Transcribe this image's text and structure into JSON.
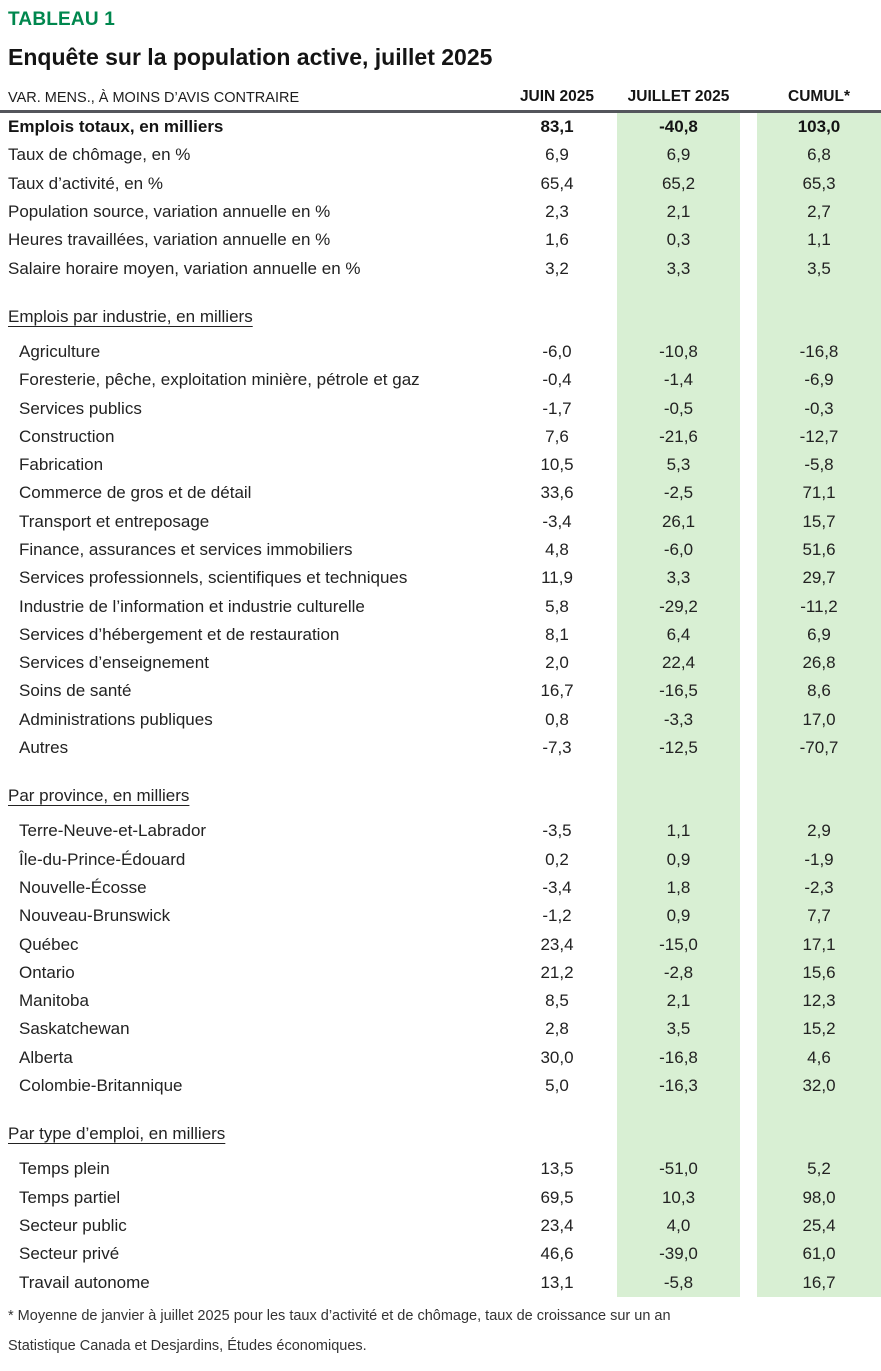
{
  "header": {
    "table_label": "TABLEAU 1",
    "title": "Enquête sur la population active, juillet 2025",
    "columns": {
      "label": "VAR. MENS., À MOINS D’AVIS CONTRAIRE",
      "juin": "JUIN 2025",
      "juillet": "JUILLET 2025",
      "cumul": "CUMUL*"
    }
  },
  "colors": {
    "accent_green": "#00874E",
    "band_green": "#D8EFD3",
    "rule_gray": "#54565C"
  },
  "table": {
    "sections": [
      {
        "heading": null,
        "rows": [
          {
            "label": "Emplois totaux, en milliers",
            "juin": "83,1",
            "juillet": "-40,8",
            "cumul": "103,0",
            "bold": true
          },
          {
            "label": "Taux de chômage, en %",
            "juin": "6,9",
            "juillet": "6,9",
            "cumul": "6,8"
          },
          {
            "label": "Taux d’activité, en %",
            "juin": "65,4",
            "juillet": "65,2",
            "cumul": "65,3"
          },
          {
            "label": "Population source, variation annuelle en %",
            "juin": "2,3",
            "juillet": "2,1",
            "cumul": "2,7"
          },
          {
            "label": "Heures travaillées, variation annuelle en %",
            "juin": "1,6",
            "juillet": "0,3",
            "cumul": "1,1"
          },
          {
            "label": "Salaire horaire moyen, variation annuelle en %",
            "juin": "3,2",
            "juillet": "3,3",
            "cumul": "3,5"
          }
        ]
      },
      {
        "heading": "Emplois par industrie, en milliers",
        "rows": [
          {
            "label": "Agriculture",
            "juin": "-6,0",
            "juillet": "-10,8",
            "cumul": "-16,8"
          },
          {
            "label": "Foresterie, pêche, exploitation minière, pétrole et gaz",
            "juin": "-0,4",
            "juillet": "-1,4",
            "cumul": "-6,9"
          },
          {
            "label": "Services publics",
            "juin": "-1,7",
            "juillet": "-0,5",
            "cumul": "-0,3"
          },
          {
            "label": "Construction",
            "juin": "7,6",
            "juillet": "-21,6",
            "cumul": "-12,7"
          },
          {
            "label": "Fabrication",
            "juin": "10,5",
            "juillet": "5,3",
            "cumul": "-5,8"
          },
          {
            "label": "Commerce de gros et de détail",
            "juin": "33,6",
            "juillet": "-2,5",
            "cumul": "71,1"
          },
          {
            "label": "Transport et entreposage",
            "juin": "-3,4",
            "juillet": "26,1",
            "cumul": "15,7"
          },
          {
            "label": "Finance, assurances et services immobiliers",
            "juin": "4,8",
            "juillet": "-6,0",
            "cumul": "51,6"
          },
          {
            "label": "Services professionnels, scientifiques et techniques",
            "juin": "11,9",
            "juillet": "3,3",
            "cumul": "29,7"
          },
          {
            "label": "Industrie de l’information et industrie culturelle",
            "juin": "5,8",
            "juillet": "-29,2",
            "cumul": "-11,2"
          },
          {
            "label": "Services d’hébergement et de restauration",
            "juin": "8,1",
            "juillet": "6,4",
            "cumul": "6,9"
          },
          {
            "label": "Services d’enseignement",
            "juin": "2,0",
            "juillet": "22,4",
            "cumul": "26,8"
          },
          {
            "label": "Soins de santé",
            "juin": "16,7",
            "juillet": "-16,5",
            "cumul": "8,6"
          },
          {
            "label": "Administrations publiques",
            "juin": "0,8",
            "juillet": "-3,3",
            "cumul": "17,0"
          },
          {
            "label": "Autres",
            "juin": "-7,3",
            "juillet": "-12,5",
            "cumul": "-70,7"
          }
        ]
      },
      {
        "heading": "Par province, en milliers",
        "rows": [
          {
            "label": "Terre-Neuve-et-Labrador",
            "juin": "-3,5",
            "juillet": "1,1",
            "cumul": "2,9"
          },
          {
            "label": "Île-du-Prince-Édouard",
            "juin": "0,2",
            "juillet": "0,9",
            "cumul": "-1,9"
          },
          {
            "label": "Nouvelle-Écosse",
            "juin": "-3,4",
            "juillet": "1,8",
            "cumul": "-2,3"
          },
          {
            "label": "Nouveau-Brunswick",
            "juin": "-1,2",
            "juillet": "0,9",
            "cumul": "7,7"
          },
          {
            "label": "Québec",
            "juin": "23,4",
            "juillet": "-15,0",
            "cumul": "17,1"
          },
          {
            "label": "Ontario",
            "juin": "21,2",
            "juillet": "-2,8",
            "cumul": "15,6"
          },
          {
            "label": "Manitoba",
            "juin": "8,5",
            "juillet": "2,1",
            "cumul": "12,3"
          },
          {
            "label": "Saskatchewan",
            "juin": "2,8",
            "juillet": "3,5",
            "cumul": "15,2"
          },
          {
            "label": "Alberta",
            "juin": "30,0",
            "juillet": "-16,8",
            "cumul": "4,6"
          },
          {
            "label": "Colombie-Britannique",
            "juin": "5,0",
            "juillet": "-16,3",
            "cumul": "32,0"
          }
        ]
      },
      {
        "heading": "Par type d’emploi, en milliers",
        "rows": [
          {
            "label": "Temps plein",
            "juin": "13,5",
            "juillet": "-51,0",
            "cumul": "5,2"
          },
          {
            "label": "Temps partiel",
            "juin": "69,5",
            "juillet": "10,3",
            "cumul": "98,0"
          },
          {
            "label": "Secteur public",
            "juin": "23,4",
            "juillet": "4,0",
            "cumul": "25,4"
          },
          {
            "label": "Secteur privé",
            "juin": "46,6",
            "juillet": "-39,0",
            "cumul": "61,0"
          },
          {
            "label": "Travail autonome",
            "juin": "13,1",
            "juillet": "-5,8",
            "cumul": "16,7"
          }
        ]
      }
    ]
  },
  "footnotes": [
    "* Moyenne de janvier à juillet 2025 pour les taux d’activité et de chômage, taux de croissance sur un an",
    "Statistique Canada et Desjardins, Études économiques."
  ]
}
